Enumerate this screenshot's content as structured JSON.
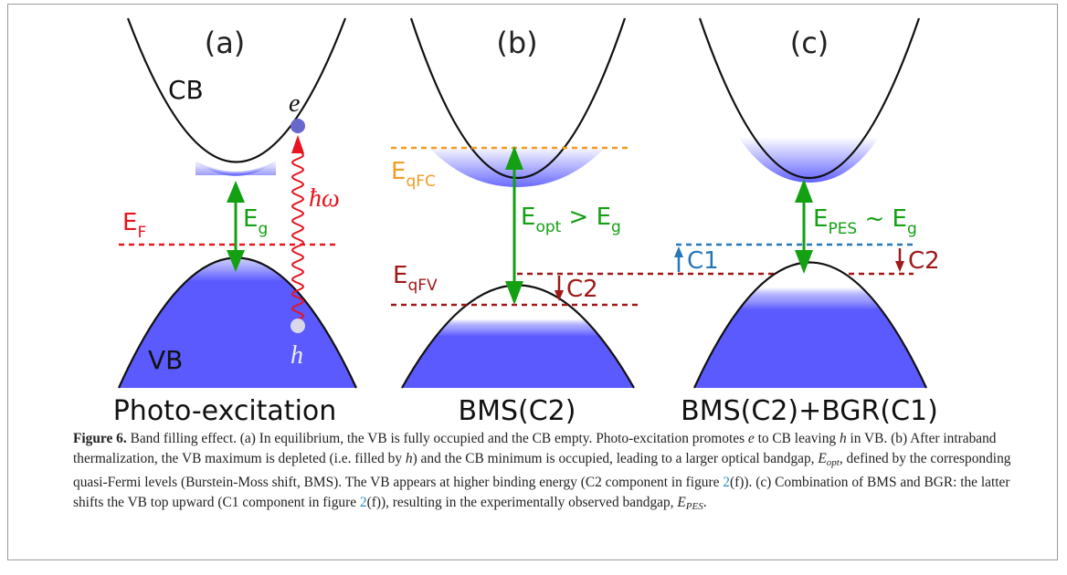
{
  "figure": {
    "panels": [
      {
        "label": "(a)",
        "title": "Photo-excitation"
      },
      {
        "label": "(b)",
        "title": "BMS(C2)"
      },
      {
        "label": "(c)",
        "title": "BMS(C2)+BGR(C1)"
      }
    ],
    "labels": {
      "cb": "CB",
      "vb": "VB",
      "electron": "e",
      "hole": "h",
      "photon": "ħω",
      "ef_main": "E",
      "ef_sub": "F",
      "eg_main": "E",
      "eg_sub": "g",
      "eqfc_main": "E",
      "eqfc_sub": "qFC",
      "eqfv_main": "E",
      "eqfv_sub": "qFV",
      "eopt_main": "E",
      "eopt_sub": "opt",
      "eopt_rel": " > E",
      "eopt_rel_sub": "g",
      "epes_main": "E",
      "epes_sub": "PES",
      "epes_rel": " ~ E",
      "epes_rel_sub": "g",
      "c1": "C1",
      "c2": "C2"
    },
    "colors": {
      "band_fill": "#5a5aff",
      "fermi": "#e8141e",
      "gap_arrow": "#13a013",
      "quasi_fermi_c": "#f39c24",
      "quasi_fermi_v": "#a01818",
      "c1": "#2577b8",
      "electron": "#6767cc",
      "hole": "#d8d8e8"
    }
  },
  "caption": {
    "label": "Figure 6.",
    "part1": " Band filling effect. (a) In equilibrium, the VB is fully occupied and the CB empty. Photo-excitation promotes ",
    "e": "e",
    "part2": " to CB leaving ",
    "h": "h",
    "part3": " in VB. (b) After intraband thermalization, the VB maximum is depleted (i.e. filled by ",
    "h2": "h",
    "part4": ") and the CB minimum is occupied, leading to a larger optical bandgap, ",
    "eopt_main": "E",
    "eopt_sub": "opt",
    "part5": ", defined by the corresponding quasi-Fermi levels (Burstein-Moss shift, BMS). The VB appears at higher binding energy (C2 component in figure ",
    "ref1": "2",
    "part6": "(f)). (c) Combination of BMS and BGR: the latter shifts the VB top upward (C1 component in figure ",
    "ref2": "2",
    "part7": "(f)), resulting in the experimentally observed bandgap, ",
    "epes_main": "E",
    "epes_sub": "PES",
    "part8": "."
  }
}
